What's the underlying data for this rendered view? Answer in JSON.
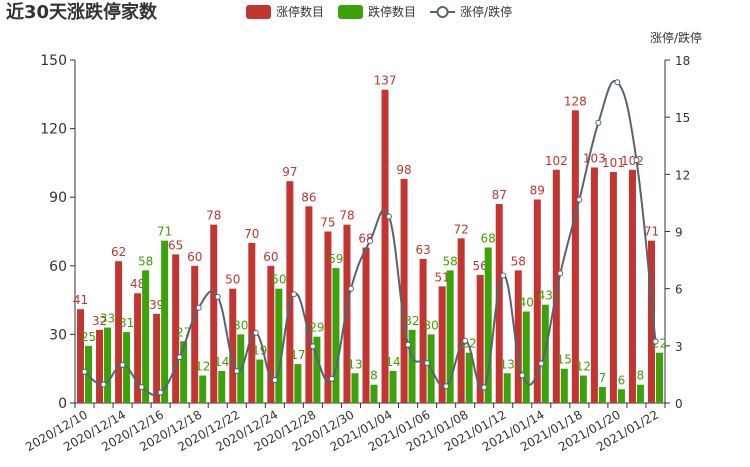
{
  "chart_data": {
    "type": "bar",
    "title": "近30天涨跌停家数",
    "categories": [
      "2020/12/10",
      null,
      "2020/12/14",
      null,
      "2020/12/16",
      null,
      "2020/12/18",
      null,
      "2020/12/22",
      null,
      "2020/12/24",
      null,
      "2020/12/28",
      null,
      "2020/12/30",
      null,
      "2021/01/04",
      null,
      "2021/01/06",
      null,
      "2021/01/08",
      null,
      "2021/01/12",
      null,
      "2021/01/14",
      null,
      "2021/01/18",
      null,
      "2021/01/20",
      null,
      "2021/01/22"
    ],
    "series": [
      {
        "name": "涨停数目",
        "type": "bar",
        "color": "#c23531",
        "values": [
          41,
          32,
          62,
          48,
          39,
          65,
          60,
          78,
          50,
          70,
          60,
          97,
          86,
          75,
          78,
          68,
          137,
          98,
          63,
          51,
          72,
          56,
          87,
          58,
          89,
          102,
          128,
          103,
          101,
          102,
          71
        ]
      },
      {
        "name": "跌停数目",
        "type": "bar",
        "color": "#3ba30a",
        "values": [
          25,
          33,
          31,
          58,
          71,
          27,
          12,
          14,
          30,
          19,
          50,
          17,
          29,
          59,
          13,
          8,
          14,
          32,
          30,
          58,
          22,
          68,
          13,
          40,
          43,
          15,
          12,
          7,
          6,
          8,
          22
        ]
      },
      {
        "name": "涨停/跌停",
        "type": "line",
        "axis": "y2",
        "color": "#546570",
        "values": [
          1.64,
          0.97,
          2.0,
          0.83,
          0.55,
          2.41,
          5.0,
          5.57,
          1.67,
          3.68,
          1.2,
          5.71,
          2.97,
          1.27,
          6.0,
          8.5,
          9.79,
          3.06,
          2.1,
          0.88,
          3.27,
          0.82,
          6.69,
          1.45,
          2.07,
          6.8,
          10.67,
          14.71,
          16.83,
          12.75,
          3.23
        ]
      }
    ],
    "y2_label": "涨停/跌停",
    "ylim": [
      0,
      150
    ],
    "yticks": [
      0,
      30,
      60,
      90,
      120,
      150
    ],
    "y2lim": [
      0,
      18
    ],
    "y2ticks": [
      0,
      3,
      6,
      9,
      12,
      15,
      18
    ]
  }
}
